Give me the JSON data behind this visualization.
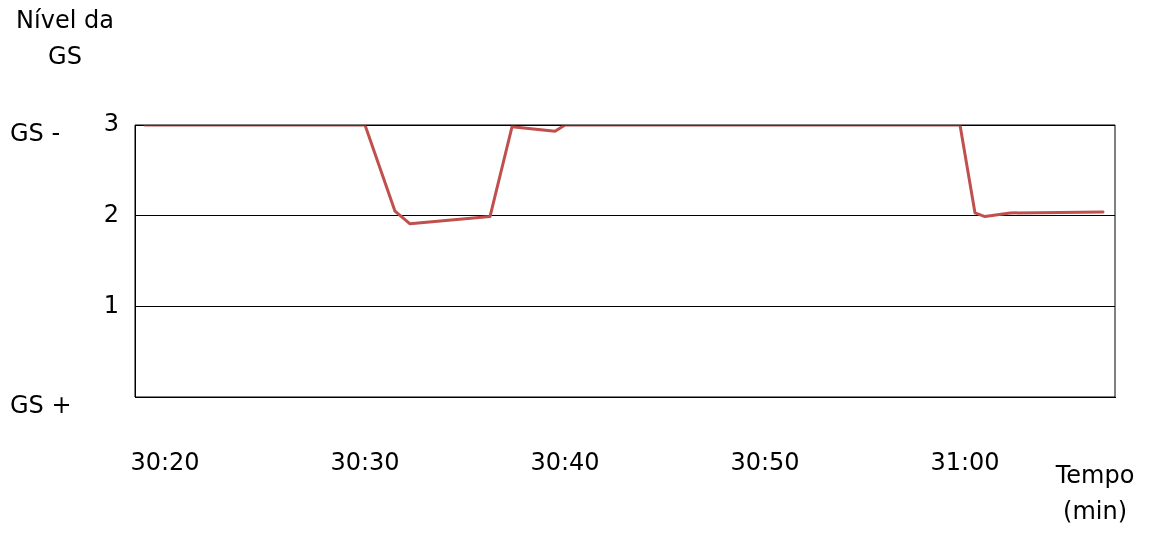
{
  "chart_data": {
    "type": "line",
    "xlabel": "Tempo (min)",
    "ylabel": "Nível da GS",
    "x": [
      1819,
      1830,
      1831.5,
      1832.25,
      1836.25,
      1837.35,
      1839.5,
      1840,
      1859.75,
      1860.5,
      1861,
      1862.25,
      1866.9
    ],
    "series": [
      {
        "color": "#c0504d",
        "values": [
          3,
          3,
          2.05,
          1.91,
          1.99,
          2.98,
          2.93,
          3,
          3,
          2.03,
          1.99,
          2.03,
          2.04
        ]
      }
    ],
    "xlim": [
      1818.5,
      1867.5
    ],
    "xticks": [
      {
        "value": 1820,
        "label": "30:20"
      },
      {
        "value": 1830,
        "label": "30:30"
      },
      {
        "value": 1840,
        "label": "30:40"
      },
      {
        "value": 1850,
        "label": "30:50"
      },
      {
        "value": 1860,
        "label": "31:00"
      }
    ],
    "ylim": [
      0,
      3
    ],
    "yticks": [
      {
        "value": 0,
        "label": null
      },
      1,
      2,
      3
    ],
    "grid": "y",
    "legend": false,
    "marker": "none",
    "line_style": "solid",
    "annotations": [
      "GS -",
      "GS +"
    ]
  }
}
